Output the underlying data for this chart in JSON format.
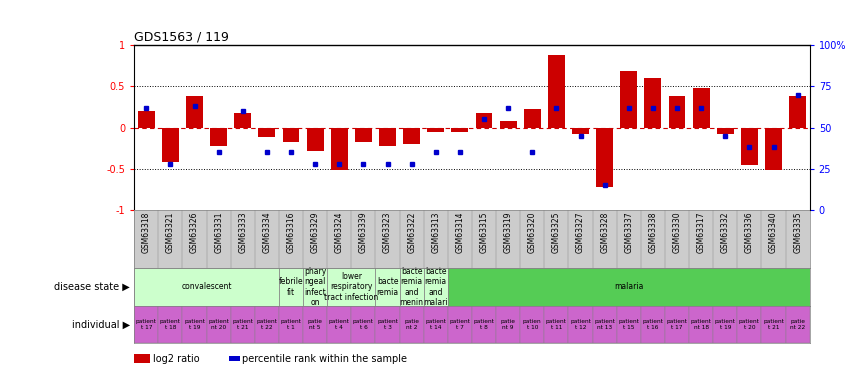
{
  "title": "GDS1563 / 119",
  "samples": [
    "GSM63318",
    "GSM63321",
    "GSM63326",
    "GSM63331",
    "GSM63333",
    "GSM63334",
    "GSM63316",
    "GSM63329",
    "GSM63324",
    "GSM63339",
    "GSM63323",
    "GSM63322",
    "GSM63313",
    "GSM63314",
    "GSM63315",
    "GSM63319",
    "GSM63320",
    "GSM63325",
    "GSM63327",
    "GSM63328",
    "GSM63337",
    "GSM63338",
    "GSM63330",
    "GSM63317",
    "GSM63332",
    "GSM63336",
    "GSM63340",
    "GSM63335"
  ],
  "log2_ratio": [
    0.2,
    -0.42,
    0.38,
    -0.22,
    0.18,
    -0.12,
    -0.18,
    -0.28,
    -0.52,
    -0.18,
    -0.22,
    -0.2,
    -0.05,
    -0.05,
    0.18,
    0.08,
    0.22,
    0.88,
    -0.08,
    -0.72,
    0.68,
    0.6,
    0.38,
    0.48,
    -0.08,
    -0.45,
    -0.52,
    0.38
  ],
  "percentile": [
    0.62,
    0.28,
    0.63,
    0.35,
    0.6,
    0.35,
    0.35,
    0.28,
    0.28,
    0.28,
    0.28,
    0.28,
    0.35,
    0.35,
    0.55,
    0.62,
    0.35,
    0.62,
    0.45,
    0.15,
    0.62,
    0.62,
    0.62,
    0.62,
    0.45,
    0.38,
    0.38,
    0.7
  ],
  "disease_groups": [
    {
      "label": "convalescent",
      "start": 0,
      "end": 5,
      "color": "#ccffcc"
    },
    {
      "label": "febrile\nfit",
      "start": 6,
      "end": 6,
      "color": "#ccffcc"
    },
    {
      "label": "phary\nngeal\ninfect\non",
      "start": 7,
      "end": 7,
      "color": "#ccffcc"
    },
    {
      "label": "lower\nrespiratory\ntract infection",
      "start": 8,
      "end": 9,
      "color": "#ccffcc"
    },
    {
      "label": "bacte\nremia",
      "start": 10,
      "end": 10,
      "color": "#ccffcc"
    },
    {
      "label": "bacte\nremia\nand\nmenin",
      "start": 11,
      "end": 11,
      "color": "#ccffcc"
    },
    {
      "label": "bacte\nremia\nand\nmalari",
      "start": 12,
      "end": 12,
      "color": "#ccffcc"
    },
    {
      "label": "malaria",
      "start": 13,
      "end": 27,
      "color": "#55cc55"
    }
  ],
  "individual_labels": [
    "patient\nt 17",
    "patient\nt 18",
    "patient\nt 19",
    "patient\nnt 20",
    "patient\nt 21",
    "patient\nt 22",
    "patient\nt 1",
    "patie\nnt 5",
    "patient\nt 4",
    "patient\nt 6",
    "patient\nt 3",
    "patie\nnt 2",
    "patient\nt 14",
    "patient\nt 7",
    "patient\nt 8",
    "patie\nnt 9",
    "patien\nt 10",
    "patient\nt 11",
    "patient\nt 12",
    "patient\nnt 13",
    "patient\nt 15",
    "patient\nt 16",
    "patient\nt 17",
    "patient\nnt 18",
    "patient\nt 19",
    "patient\nt 20",
    "patient\nt 21",
    "patie\nnt 22"
  ],
  "bar_color": "#cc0000",
  "dot_color": "#0000cc",
  "zero_line_color": "#cc0000",
  "bg_color": "#ffffff",
  "left_yticks": [
    -1,
    -0.5,
    0,
    0.5,
    1
  ],
  "right_yticks": [
    0,
    25,
    50,
    75,
    100
  ],
  "ylim": [
    -1,
    1
  ],
  "individual_color": "#cc66cc",
  "label_bg": "#cccccc"
}
